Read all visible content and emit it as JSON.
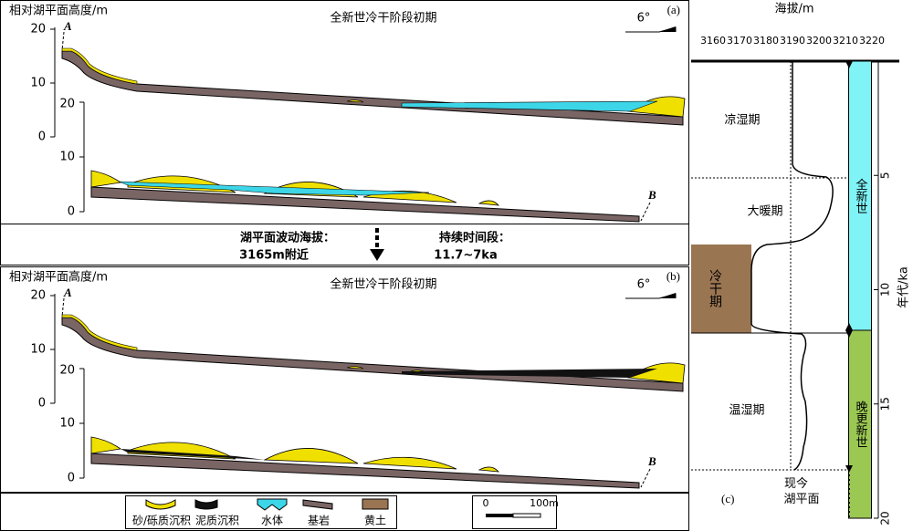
{
  "panel_a": {
    "y_axis_label": "相对湖平面高度/m",
    "title": "全新世冷干阶段初期",
    "label": "(a)",
    "slope": "6°",
    "upper_ticks": [
      20,
      10,
      0
    ],
    "lower_ticks": [
      20,
      10,
      0
    ],
    "start": "A",
    "end": "B"
  },
  "panel_b": {
    "y_axis_label": "相对湖平面高度/m",
    "title": "全新世冷干阶段初期",
    "label": "(b)",
    "slope": "6°",
    "upper_ticks": [
      20,
      10,
      0
    ],
    "lower_ticks": [
      20,
      10,
      0
    ],
    "start": "A",
    "end": "B"
  },
  "middle": {
    "elevation_label": "湖平面波动海拔：",
    "elevation_value": "3165m附近",
    "duration_label": "持续时间段：",
    "duration_value": "11.7~7ka"
  },
  "legend": {
    "items": [
      "砂/砾质沉积",
      "泥质沉积",
      "水体",
      "基岩",
      "黄土"
    ],
    "scale_start": "0",
    "scale_end": "100m"
  },
  "panel_c": {
    "x_axis_label": "海拔/m",
    "x_ticks": [
      3160,
      3170,
      3180,
      3190,
      3200,
      3210,
      3220
    ],
    "periods": [
      "凉湿期",
      "大暖期",
      "冷干期",
      "温湿期"
    ],
    "epochs": [
      "全新世",
      "晚更新世"
    ],
    "y_axis_label": "年代/ka",
    "y_ticks": [
      5,
      10,
      15,
      20
    ],
    "present_level": "现今湖平面",
    "label": "(c)"
  }
}
